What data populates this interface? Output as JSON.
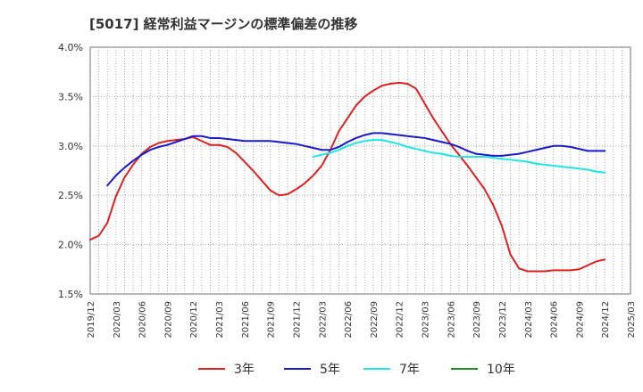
{
  "chart_data": {
    "type": "line",
    "title": "[5017]  経常利益マージンの標準偏差の推移",
    "xlabel": "",
    "ylabel": "",
    "ylim": [
      0.015,
      0.04
    ],
    "y_ticks": [
      0.015,
      0.02,
      0.025,
      0.03,
      0.035,
      0.04
    ],
    "y_tick_labels": [
      "1.5%",
      "2.0%",
      "2.5%",
      "3.0%",
      "3.5%",
      "4.0%"
    ],
    "x_ticks": [
      "2019/12",
      "2020/03",
      "2020/06",
      "2020/09",
      "2020/12",
      "2021/03",
      "2021/06",
      "2021/09",
      "2021/12",
      "2022/03",
      "2022/06",
      "2022/09",
      "2022/12",
      "2023/03",
      "2023/06",
      "2023/09",
      "2023/12",
      "2024/03",
      "2024/06",
      "2024/09",
      "2024/12",
      "2025/03"
    ],
    "grid": true,
    "legend_position": "bottom",
    "series": [
      {
        "name": "3年",
        "color": "#dd2222",
        "points": [
          [
            "2019/12",
            0.0205
          ],
          [
            "2020/01",
            0.0209
          ],
          [
            "2020/02",
            0.0222
          ],
          [
            "2020/03",
            0.0249
          ],
          [
            "2020/04",
            0.0268
          ],
          [
            "2020/05",
            0.0281
          ],
          [
            "2020/06",
            0.0292
          ],
          [
            "2020/07",
            0.0299
          ],
          [
            "2020/08",
            0.0303
          ],
          [
            "2020/09",
            0.0305
          ],
          [
            "2020/10",
            0.0306
          ],
          [
            "2020/11",
            0.0307
          ],
          [
            "2020/12",
            0.0309
          ],
          [
            "2021/01",
            0.0305
          ],
          [
            "2021/02",
            0.0301
          ],
          [
            "2021/03",
            0.0301
          ],
          [
            "2021/04",
            0.0299
          ],
          [
            "2021/05",
            0.0293
          ],
          [
            "2021/06",
            0.0284
          ],
          [
            "2021/07",
            0.0275
          ],
          [
            "2021/08",
            0.0265
          ],
          [
            "2021/09",
            0.0255
          ],
          [
            "2021/10",
            0.025
          ],
          [
            "2021/11",
            0.0251
          ],
          [
            "2021/12",
            0.0256
          ],
          [
            "2022/01",
            0.0262
          ],
          [
            "2022/02",
            0.027
          ],
          [
            "2022/03",
            0.028
          ],
          [
            "2022/04",
            0.0296
          ],
          [
            "2022/05",
            0.0315
          ],
          [
            "2022/06",
            0.0328
          ],
          [
            "2022/07",
            0.0341
          ],
          [
            "2022/08",
            0.035
          ],
          [
            "2022/09",
            0.0356
          ],
          [
            "2022/10",
            0.0361
          ],
          [
            "2022/11",
            0.0363
          ],
          [
            "2022/12",
            0.0364
          ],
          [
            "2023/01",
            0.0363
          ],
          [
            "2023/02",
            0.0358
          ],
          [
            "2023/03",
            0.0343
          ],
          [
            "2023/04",
            0.0328
          ],
          [
            "2023/05",
            0.0315
          ],
          [
            "2023/06",
            0.0302
          ],
          [
            "2023/07",
            0.0291
          ],
          [
            "2023/08",
            0.028
          ],
          [
            "2023/09",
            0.0268
          ],
          [
            "2023/10",
            0.0256
          ],
          [
            "2023/11",
            0.024
          ],
          [
            "2023/12",
            0.0219
          ],
          [
            "2024/01",
            0.019
          ],
          [
            "2024/02",
            0.0176
          ],
          [
            "2024/03",
            0.0173
          ],
          [
            "2024/04",
            0.0173
          ],
          [
            "2024/05",
            0.0173
          ],
          [
            "2024/06",
            0.0174
          ],
          [
            "2024/07",
            0.0174
          ],
          [
            "2024/08",
            0.0174
          ],
          [
            "2024/09",
            0.0175
          ],
          [
            "2024/10",
            0.0179
          ],
          [
            "2024/11",
            0.0183
          ],
          [
            "2024/12",
            0.0185
          ]
        ]
      },
      {
        "name": "5年",
        "color": "#1a1acc",
        "points": [
          [
            "2020/02",
            0.026
          ],
          [
            "2020/03",
            0.027
          ],
          [
            "2020/04",
            0.0278
          ],
          [
            "2020/05",
            0.0285
          ],
          [
            "2020/06",
            0.0291
          ],
          [
            "2020/07",
            0.0296
          ],
          [
            "2020/08",
            0.0299
          ],
          [
            "2020/09",
            0.0301
          ],
          [
            "2020/10",
            0.0304
          ],
          [
            "2020/11",
            0.0307
          ],
          [
            "2020/12",
            0.031
          ],
          [
            "2021/01",
            0.031
          ],
          [
            "2021/02",
            0.0308
          ],
          [
            "2021/03",
            0.0308
          ],
          [
            "2021/04",
            0.0307
          ],
          [
            "2021/05",
            0.0306
          ],
          [
            "2021/06",
            0.0305
          ],
          [
            "2021/07",
            0.0305
          ],
          [
            "2021/08",
            0.0305
          ],
          [
            "2021/09",
            0.0305
          ],
          [
            "2021/10",
            0.0304
          ],
          [
            "2021/11",
            0.0303
          ],
          [
            "2021/12",
            0.0302
          ],
          [
            "2022/01",
            0.03
          ],
          [
            "2022/02",
            0.0298
          ],
          [
            "2022/03",
            0.0296
          ],
          [
            "2022/04",
            0.0296
          ],
          [
            "2022/05",
            0.0299
          ],
          [
            "2022/06",
            0.0304
          ],
          [
            "2022/07",
            0.0308
          ],
          [
            "2022/08",
            0.0311
          ],
          [
            "2022/09",
            0.0313
          ],
          [
            "2022/10",
            0.0313
          ],
          [
            "2022/11",
            0.0312
          ],
          [
            "2022/12",
            0.0311
          ],
          [
            "2023/01",
            0.031
          ],
          [
            "2023/02",
            0.0309
          ],
          [
            "2023/03",
            0.0308
          ],
          [
            "2023/04",
            0.0306
          ],
          [
            "2023/05",
            0.0304
          ],
          [
            "2023/06",
            0.0302
          ],
          [
            "2023/07",
            0.0299
          ],
          [
            "2023/08",
            0.0295
          ],
          [
            "2023/09",
            0.0292
          ],
          [
            "2023/10",
            0.0291
          ],
          [
            "2023/11",
            0.029
          ],
          [
            "2023/12",
            0.029
          ],
          [
            "2024/01",
            0.0291
          ],
          [
            "2024/02",
            0.0292
          ],
          [
            "2024/03",
            0.0294
          ],
          [
            "2024/04",
            0.0296
          ],
          [
            "2024/05",
            0.0298
          ],
          [
            "2024/06",
            0.03
          ],
          [
            "2024/07",
            0.03
          ],
          [
            "2024/08",
            0.0299
          ],
          [
            "2024/09",
            0.0297
          ],
          [
            "2024/10",
            0.0295
          ],
          [
            "2024/11",
            0.0295
          ],
          [
            "2024/12",
            0.0295
          ]
        ]
      },
      {
        "name": "7年",
        "color": "#22e5e5",
        "points": [
          [
            "2022/02",
            0.0289
          ],
          [
            "2022/03",
            0.0291
          ],
          [
            "2022/04",
            0.0293
          ],
          [
            "2022/05",
            0.0296
          ],
          [
            "2022/06",
            0.03
          ],
          [
            "2022/07",
            0.0303
          ],
          [
            "2022/08",
            0.0305
          ],
          [
            "2022/09",
            0.0306
          ],
          [
            "2022/10",
            0.0306
          ],
          [
            "2022/11",
            0.0304
          ],
          [
            "2022/12",
            0.0302
          ],
          [
            "2023/01",
            0.0299
          ],
          [
            "2023/02",
            0.0297
          ],
          [
            "2023/03",
            0.0295
          ],
          [
            "2023/04",
            0.0293
          ],
          [
            "2023/05",
            0.0292
          ],
          [
            "2023/06",
            0.029
          ],
          [
            "2023/07",
            0.0289
          ],
          [
            "2023/08",
            0.0289
          ],
          [
            "2023/09",
            0.0289
          ],
          [
            "2023/10",
            0.0289
          ],
          [
            "2023/11",
            0.0288
          ],
          [
            "2023/12",
            0.0287
          ],
          [
            "2024/01",
            0.0286
          ],
          [
            "2024/02",
            0.0285
          ],
          [
            "2024/03",
            0.0284
          ],
          [
            "2024/04",
            0.0282
          ],
          [
            "2024/05",
            0.0281
          ],
          [
            "2024/06",
            0.028
          ],
          [
            "2024/07",
            0.0279
          ],
          [
            "2024/08",
            0.0278
          ],
          [
            "2024/09",
            0.0277
          ],
          [
            "2024/10",
            0.0276
          ],
          [
            "2024/11",
            0.0274
          ],
          [
            "2024/12",
            0.0273
          ]
        ]
      },
      {
        "name": "10年",
        "color": "#228b22",
        "points": []
      }
    ]
  }
}
